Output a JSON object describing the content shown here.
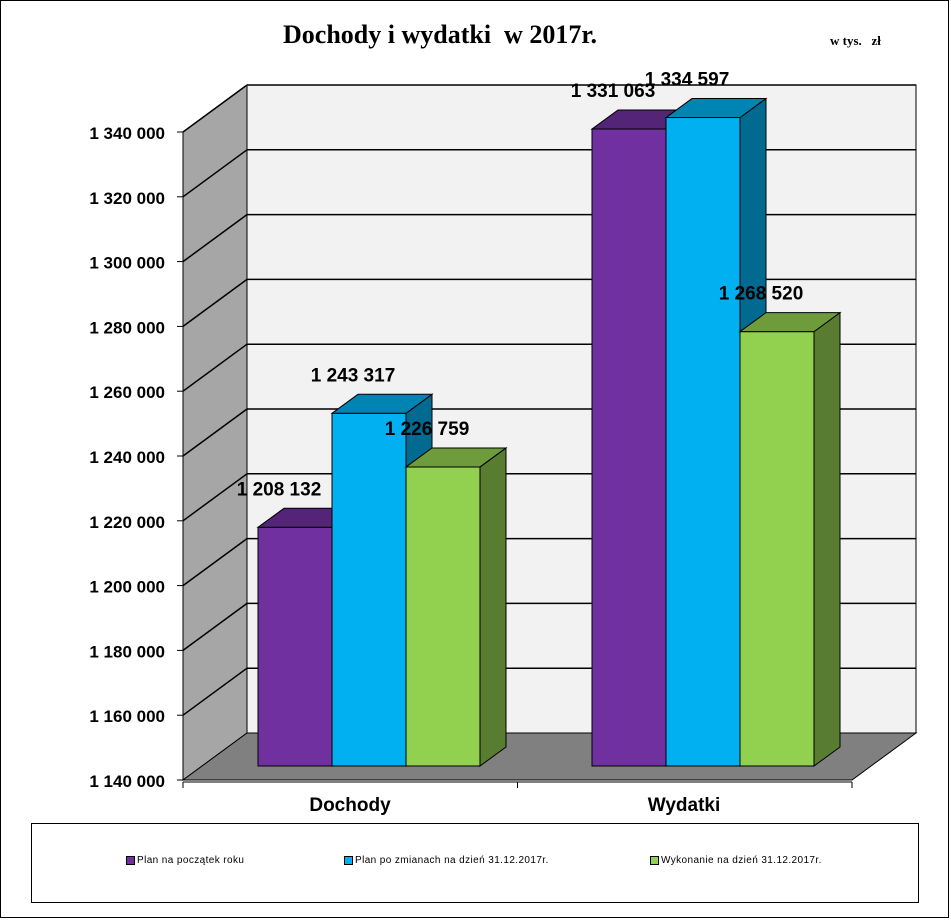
{
  "unit_label": "w tys.   zł",
  "chart_data": {
    "type": "bar",
    "title": "Dochody i wydatki  w 2017r.",
    "categories": [
      "Dochody",
      "Wydatki"
    ],
    "series": [
      {
        "name": "Plan na początek roku",
        "values": [
          1208132,
          1331063
        ],
        "labels": [
          "1 208 132",
          "1 331 063"
        ],
        "color": "#7030A0"
      },
      {
        "name": "Plan po zmianach na dzień 31.12.2017r.",
        "values": [
          1243317,
          1334597
        ],
        "labels": [
          "1 243 317",
          "1 334 597"
        ],
        "color": "#00B0F0"
      },
      {
        "name": "Wykonanie na dzień 31.12.2017r.",
        "values": [
          1226759,
          1268520
        ],
        "labels": [
          "1 226 759",
          "1 268 520"
        ],
        "color": "#92D050"
      }
    ],
    "ylim": [
      1140000,
      1340000
    ],
    "yticks": [
      1140000,
      1160000,
      1180000,
      1200000,
      1220000,
      1240000,
      1260000,
      1280000,
      1300000,
      1320000,
      1340000
    ],
    "ytick_labels": [
      "1 140 000",
      "1 160 000",
      "1 180 000",
      "1 200 000",
      "1 220 000",
      "1 240 000",
      "1 260 000",
      "1 280 000",
      "1 300 000",
      "1 320 000",
      "1 340 000"
    ],
    "xlabel": "",
    "ylabel": "",
    "grid": true,
    "legend": "bottom"
  }
}
